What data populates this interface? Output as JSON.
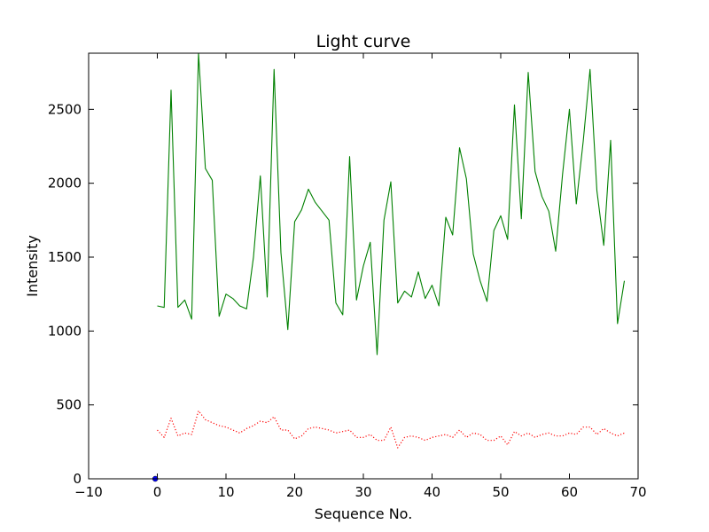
{
  "chart_data": {
    "type": "line",
    "title": "Light curve",
    "xlabel": "Sequence No.",
    "ylabel": "Intensity",
    "xlim": [
      -10,
      70
    ],
    "ylim": [
      0,
      2880
    ],
    "xticks": [
      -10,
      0,
      10,
      20,
      30,
      40,
      50,
      60,
      70
    ],
    "yticks": [
      0,
      500,
      1000,
      1500,
      2000,
      2500
    ],
    "grid": false,
    "colors": {
      "signal": "#008000",
      "background": "#ff0000",
      "marker": "#0000ff"
    },
    "series": [
      {
        "style": "solid",
        "color": "#008000",
        "x": [
          0,
          1,
          2,
          3,
          4,
          5,
          6,
          7,
          8,
          9,
          10,
          11,
          12,
          13,
          14,
          15,
          16,
          17,
          18,
          19,
          20,
          21,
          22,
          23,
          24,
          25,
          26,
          27,
          28,
          29,
          30,
          31,
          32,
          33,
          34,
          35,
          36,
          37,
          38,
          39,
          40,
          41,
          42,
          43,
          44,
          45,
          46,
          47,
          48,
          49,
          50,
          51,
          52,
          53,
          54,
          55,
          56,
          57,
          58,
          59,
          60,
          61,
          62,
          63,
          64,
          65,
          66,
          67,
          68
        ],
        "values": [
          1170,
          1160,
          2630,
          1160,
          1210,
          1080,
          2880,
          2100,
          2020,
          1100,
          1250,
          1220,
          1170,
          1150,
          1500,
          2050,
          1230,
          2770,
          1530,
          1010,
          1740,
          1820,
          1960,
          1870,
          1810,
          1750,
          1190,
          1110,
          2180,
          1210,
          1440,
          1600,
          840,
          1750,
          2010,
          1190,
          1270,
          1230,
          1400,
          1220,
          1310,
          1170,
          1770,
          1650,
          2240,
          2030,
          1520,
          1340,
          1200,
          1680,
          1780,
          1620,
          2530,
          1760,
          2750,
          2080,
          1910,
          1810,
          1540,
          2060,
          2500,
          1860,
          2280,
          2770,
          1950,
          1580,
          2290,
          1050,
          1340
        ]
      },
      {
        "style": "dotted",
        "color": "#ff0000",
        "x": [
          0,
          1,
          2,
          3,
          4,
          5,
          6,
          7,
          8,
          9,
          10,
          11,
          12,
          13,
          14,
          15,
          16,
          17,
          18,
          19,
          20,
          21,
          22,
          23,
          24,
          25,
          26,
          27,
          28,
          29,
          30,
          31,
          32,
          33,
          34,
          35,
          36,
          37,
          38,
          39,
          40,
          41,
          42,
          43,
          44,
          45,
          46,
          47,
          48,
          49,
          50,
          51,
          52,
          53,
          54,
          55,
          56,
          57,
          58,
          59,
          60,
          61,
          62,
          63,
          64,
          65,
          66,
          67,
          68
        ],
        "values": [
          330,
          280,
          410,
          290,
          310,
          300,
          460,
          400,
          380,
          360,
          350,
          330,
          310,
          340,
          360,
          390,
          380,
          420,
          330,
          330,
          270,
          290,
          340,
          350,
          340,
          330,
          310,
          320,
          330,
          280,
          280,
          300,
          260,
          260,
          350,
          210,
          280,
          290,
          280,
          260,
          280,
          290,
          300,
          280,
          330,
          280,
          310,
          300,
          260,
          260,
          290,
          230,
          320,
          290,
          310,
          280,
          300,
          310,
          290,
          290,
          310,
          300,
          350,
          350,
          300,
          340,
          310,
          290,
          310
        ]
      },
      {
        "style": "marker",
        "color": "#0000ff",
        "x": [
          -0.3
        ],
        "values": [
          0
        ]
      }
    ]
  }
}
